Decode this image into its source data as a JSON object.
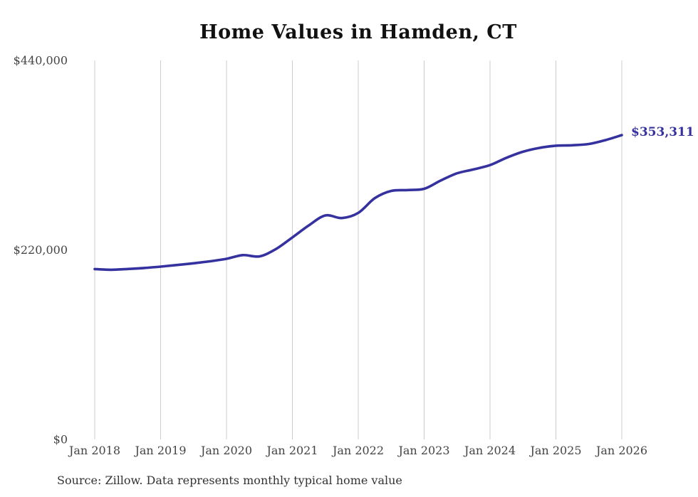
{
  "chart_data": {
    "type": "line",
    "title": "Home Values in Hamden, CT",
    "xlabel": "",
    "ylabel": "",
    "ylim": [
      0,
      440000
    ],
    "y_ticks": [
      0,
      220000,
      440000
    ],
    "y_tick_labels": [
      "$0",
      "$220,000",
      "$440,000"
    ],
    "x_tick_labels": [
      "Jan 2018",
      "Jan 2019",
      "Jan 2020",
      "Jan 2021",
      "Jan 2022",
      "Jan 2023",
      "Jan 2024",
      "Jan 2025",
      "Jan 2026"
    ],
    "grid": "vertical-only",
    "legend": "none",
    "end_label": "$353,311",
    "colors": {
      "line": "#3532a0",
      "grid": "#cccccc",
      "tick_label": "#444444",
      "title": "#111111",
      "source": "#333333"
    },
    "series": [
      {
        "name": "Monthly typical home value",
        "points": [
          {
            "date": "2018-01",
            "value": 197800
          },
          {
            "date": "2018-04",
            "value": 197000
          },
          {
            "date": "2018-07",
            "value": 197900
          },
          {
            "date": "2018-10",
            "value": 199000
          },
          {
            "date": "2019-01",
            "value": 200600
          },
          {
            "date": "2019-04",
            "value": 202500
          },
          {
            "date": "2019-07",
            "value": 204500
          },
          {
            "date": "2019-10",
            "value": 206800
          },
          {
            "date": "2020-01",
            "value": 209700
          },
          {
            "date": "2020-04",
            "value": 214000
          },
          {
            "date": "2020-07",
            "value": 212500
          },
          {
            "date": "2020-10",
            "value": 221000
          },
          {
            "date": "2021-01",
            "value": 234500
          },
          {
            "date": "2021-04",
            "value": 248500
          },
          {
            "date": "2021-07",
            "value": 260000
          },
          {
            "date": "2021-10",
            "value": 257000
          },
          {
            "date": "2022-01",
            "value": 263000
          },
          {
            "date": "2022-04",
            "value": 280000
          },
          {
            "date": "2022-07",
            "value": 288500
          },
          {
            "date": "2022-10",
            "value": 289500
          },
          {
            "date": "2023-01",
            "value": 291000
          },
          {
            "date": "2023-04",
            "value": 300500
          },
          {
            "date": "2023-07",
            "value": 309000
          },
          {
            "date": "2023-10",
            "value": 313500
          },
          {
            "date": "2024-01",
            "value": 318500
          },
          {
            "date": "2024-04",
            "value": 327000
          },
          {
            "date": "2024-07",
            "value": 334000
          },
          {
            "date": "2024-10",
            "value": 338500
          },
          {
            "date": "2025-01",
            "value": 341000
          },
          {
            "date": "2025-04",
            "value": 341500
          },
          {
            "date": "2025-07",
            "value": 343000
          },
          {
            "date": "2025-10",
            "value": 347500
          },
          {
            "date": "2026-01",
            "value": 353311
          }
        ]
      }
    ]
  },
  "footer": {
    "source": "Source: Zillow. Data represents monthly typical home value"
  }
}
